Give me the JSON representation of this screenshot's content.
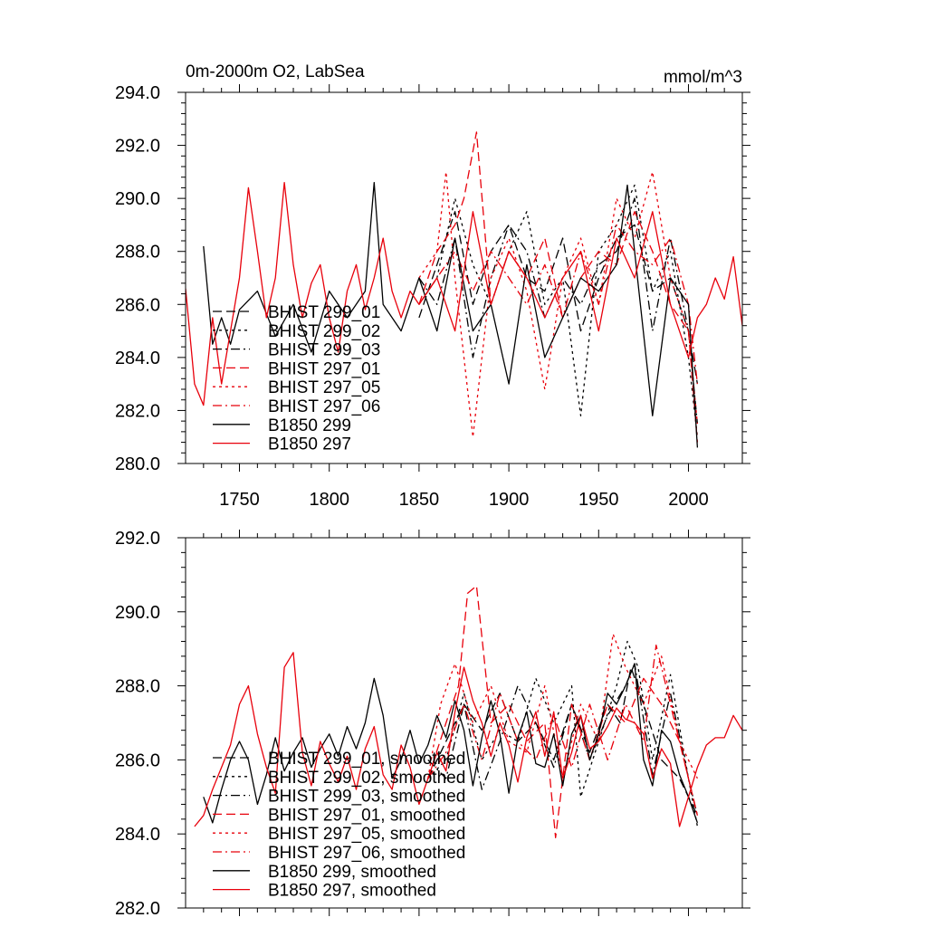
{
  "chart_data": [
    {
      "type": "line",
      "title_left": "0m-2000m O2, LabSea",
      "title_right": "mmol/m^3",
      "xlim": [
        1720,
        2030
      ],
      "ylim": [
        280,
        294
      ],
      "xticks": [
        1750,
        1800,
        1850,
        1900,
        1950,
        2000
      ],
      "xtick_labels": [
        "1750",
        "1800",
        "1850",
        "1900",
        "1950",
        "2000"
      ],
      "yticks": [
        280,
        282,
        284,
        286,
        288,
        290,
        292,
        294
      ],
      "ytick_labels": [
        "280.0",
        "282.0",
        "284.0",
        "286.0",
        "288.0",
        "290.0",
        "292.0",
        "294.0"
      ],
      "legend": [
        "BHIST 299_01",
        "BHIST 299_02",
        "BHIST 299_03",
        "BHIST 297_01",
        "BHIST 297_05",
        "BHIST 297_06",
        "B1850 299",
        "B1850 297"
      ],
      "series": [
        {
          "name": "BHIST 299_01",
          "color": "#000000",
          "dash": "long",
          "x": [
            1850,
            1860,
            1870,
            1880,
            1890,
            1900,
            1910,
            1920,
            1930,
            1940,
            1950,
            1960,
            1970,
            1980,
            1990,
            2000,
            2005
          ],
          "values": [
            285.5,
            287.5,
            289.5,
            286,
            288,
            289,
            287,
            286.5,
            288.5,
            285,
            287,
            288.5,
            289,
            286.5,
            287,
            285,
            283
          ]
        },
        {
          "name": "BHIST 299_02",
          "color": "#000000",
          "dash": "dot",
          "x": [
            1850,
            1860,
            1870,
            1880,
            1890,
            1900,
            1910,
            1920,
            1930,
            1940,
            1950,
            1960,
            1970,
            1980,
            1990,
            2000,
            2005
          ],
          "values": [
            286,
            287,
            290,
            287.5,
            286,
            288,
            289.5,
            286,
            287,
            281.8,
            288,
            289,
            290.5,
            286.5,
            288,
            284,
            281
          ]
        },
        {
          "name": "BHIST 299_03",
          "color": "#000000",
          "dash": "dashdot",
          "x": [
            1850,
            1860,
            1870,
            1880,
            1890,
            1900,
            1910,
            1920,
            1930,
            1940,
            1950,
            1960,
            1970,
            1980,
            1990,
            2000,
            2005
          ],
          "values": [
            287,
            286,
            288.5,
            284,
            287,
            289,
            288,
            285.5,
            287,
            286,
            287.5,
            288,
            290,
            285,
            288.5,
            285,
            281.5
          ]
        },
        {
          "name": "BHIST 297_01",
          "color": "#e8000b",
          "dash": "long",
          "x": [
            1850,
            1860,
            1870,
            1875,
            1882,
            1890,
            1900,
            1910,
            1920,
            1930,
            1940,
            1950,
            1960,
            1970,
            1980,
            1990,
            2000,
            2005
          ],
          "values": [
            286,
            288,
            289,
            290,
            292.5,
            286,
            288,
            287,
            288.5,
            285.5,
            287,
            288,
            287.5,
            289.5,
            288,
            286,
            285,
            280.8
          ]
        },
        {
          "name": "BHIST 297_05",
          "color": "#e8000b",
          "dash": "dot",
          "x": [
            1850,
            1860,
            1865,
            1870,
            1880,
            1890,
            1900,
            1910,
            1920,
            1930,
            1940,
            1950,
            1960,
            1970,
            1980,
            1990,
            2000,
            2005
          ],
          "values": [
            287,
            288,
            291,
            287,
            281,
            287,
            288.5,
            286.5,
            282.8,
            287,
            288.5,
            286,
            290,
            288.5,
            291,
            287,
            285,
            281.5
          ]
        },
        {
          "name": "BHIST 297_06",
          "color": "#e8000b",
          "dash": "dashdot",
          "x": [
            1850,
            1860,
            1870,
            1880,
            1890,
            1900,
            1910,
            1920,
            1930,
            1940,
            1950,
            1960,
            1970,
            1980,
            1990,
            2000,
            2005
          ],
          "values": [
            286,
            287,
            288,
            286.5,
            288,
            287,
            286,
            287.5,
            285.5,
            288,
            286,
            289,
            288,
            287.5,
            288.5,
            286,
            283
          ]
        },
        {
          "name": "B1850 299",
          "color": "#000000",
          "dash": "solid",
          "x": [
            1730,
            1735,
            1740,
            1745,
            1750,
            1760,
            1770,
            1780,
            1790,
            1800,
            1810,
            1820,
            1825,
            1830,
            1840,
            1850,
            1860,
            1870,
            1880,
            1890,
            1900,
            1910,
            1920,
            1930,
            1940,
            1950,
            1960,
            1966,
            1970,
            1980,
            1990,
            2000,
            2005
          ],
          "values": [
            288.2,
            284.5,
            285.5,
            284.5,
            285.8,
            286.5,
            284.8,
            286,
            284.2,
            286.5,
            285.5,
            286.5,
            290.6,
            286,
            285,
            287,
            285,
            288.5,
            285,
            286,
            283,
            287.5,
            284,
            285.5,
            287,
            286.5,
            287.5,
            290.5,
            288,
            281.8,
            287,
            286,
            280.6
          ]
        },
        {
          "name": "B1850 297",
          "color": "#e8000b",
          "dash": "solid",
          "x": [
            1720,
            1725,
            1730,
            1735,
            1740,
            1745,
            1750,
            1755,
            1760,
            1765,
            1770,
            1775,
            1780,
            1785,
            1790,
            1795,
            1800,
            1805,
            1810,
            1815,
            1820,
            1825,
            1830,
            1835,
            1840,
            1845,
            1850,
            1860,
            1870,
            1880,
            1890,
            1900,
            1910,
            1920,
            1930,
            1940,
            1950,
            1960,
            1970,
            1980,
            1990,
            2000,
            2005,
            2010,
            2015,
            2020,
            2025,
            2030
          ],
          "values": [
            286.6,
            283,
            282.2,
            285.5,
            283,
            285,
            287,
            290.4,
            288,
            285.5,
            287,
            290.6,
            287.5,
            285.5,
            286.8,
            287.5,
            285.5,
            284.2,
            286.5,
            287.5,
            285.8,
            287,
            288.5,
            286.5,
            285.5,
            286.5,
            286,
            287,
            285,
            289.5,
            286,
            288,
            287,
            285.5,
            287,
            288,
            285,
            288.5,
            287,
            289.5,
            286,
            284,
            285.5,
            286,
            287,
            286.2,
            287.8,
            285.2
          ]
        }
      ]
    },
    {
      "type": "line",
      "xlim": [
        1720,
        2030
      ],
      "ylim": [
        282,
        292
      ],
      "yticks": [
        282,
        284,
        286,
        288,
        290,
        292
      ],
      "ytick_labels": [
        "282.0",
        "284.0",
        "286.0",
        "288.0",
        "290.0",
        "292.0"
      ],
      "legend": [
        "BHIST 299_01, smoothed",
        "BHIST 299_02, smoothed",
        "BHIST 299_03, smoothed",
        "BHIST 297_01, smoothed",
        "BHIST 297_05, smoothed",
        "BHIST 297_06, smoothed",
        "B1850 299, smoothed",
        "B1850 297, smoothed"
      ],
      "series": [
        {
          "name": "BHIST 299_01, smoothed",
          "color": "#000000",
          "dash": "long",
          "x": [
            1855,
            1865,
            1875,
            1885,
            1895,
            1905,
            1915,
            1925,
            1935,
            1945,
            1955,
            1962,
            1968,
            1975,
            1985,
            1995,
            2005
          ],
          "values": [
            285.5,
            286.5,
            287.5,
            286.8,
            287.8,
            286.5,
            287,
            286,
            287.5,
            286.2,
            287.5,
            287,
            288.5,
            287.5,
            286,
            285.5,
            284.5
          ]
        },
        {
          "name": "BHIST 299_02, smoothed",
          "color": "#000000",
          "dash": "dot",
          "x": [
            1855,
            1865,
            1875,
            1885,
            1895,
            1905,
            1915,
            1925,
            1935,
            1940,
            1950,
            1960,
            1966,
            1972,
            1980,
            1990,
            2000,
            2005
          ],
          "values": [
            285.5,
            286,
            287.8,
            286,
            286.8,
            286.5,
            288.2,
            287,
            288,
            285,
            286.5,
            288,
            289.2,
            288.5,
            286,
            288.3,
            285.5,
            284.2
          ]
        },
        {
          "name": "BHIST 299_03, smoothed",
          "color": "#000000",
          "dash": "dashdot",
          "x": [
            1855,
            1865,
            1875,
            1885,
            1895,
            1905,
            1915,
            1925,
            1935,
            1945,
            1955,
            1965,
            1970,
            1980,
            1990,
            2000,
            2005
          ],
          "values": [
            286,
            285.5,
            287.5,
            285.2,
            286.5,
            288,
            287,
            285.8,
            287.5,
            286,
            287.2,
            288,
            288.6,
            285.6,
            287.8,
            285.5,
            284.5
          ]
        },
        {
          "name": "BHIST 297_01, smoothed",
          "color": "#e8000b",
          "dash": "long",
          "x": [
            1855,
            1865,
            1872,
            1877,
            1882,
            1890,
            1900,
            1910,
            1920,
            1926,
            1935,
            1945,
            1955,
            1965,
            1975,
            1985,
            1995,
            2005
          ],
          "values": [
            285.5,
            287,
            288,
            290.5,
            290.7,
            287,
            287.5,
            286.5,
            287,
            283.9,
            287.5,
            286,
            287.5,
            287,
            288.2,
            287.5,
            286.5,
            284.5
          ]
        },
        {
          "name": "BHIST 297_05, smoothed",
          "color": "#e8000b",
          "dash": "dot",
          "x": [
            1855,
            1862,
            1870,
            1880,
            1890,
            1900,
            1910,
            1920,
            1930,
            1940,
            1950,
            1958,
            1965,
            1975,
            1985,
            1995,
            2005
          ],
          "values": [
            285.5,
            287.5,
            288.6,
            287,
            288,
            286.5,
            286.2,
            288,
            285.5,
            287.5,
            286.5,
            289.4,
            288.5,
            287.5,
            288.8,
            286.5,
            285.5
          ]
        },
        {
          "name": "BHIST 297_06, smoothed",
          "color": "#e8000b",
          "dash": "dashdot",
          "x": [
            1855,
            1865,
            1875,
            1885,
            1895,
            1905,
            1915,
            1925,
            1935,
            1945,
            1955,
            1965,
            1975,
            1982,
            1990,
            2000,
            2005
          ],
          "values": [
            285.5,
            286.2,
            287.5,
            286,
            287.8,
            286.5,
            286,
            287.2,
            285.8,
            287.5,
            286,
            287.5,
            286.5,
            289.1,
            287.5,
            285.5,
            284.5
          ]
        },
        {
          "name": "B1850 299, smoothed",
          "color": "#000000",
          "dash": "solid",
          "x": [
            1730,
            1735,
            1740,
            1745,
            1750,
            1755,
            1760,
            1765,
            1770,
            1775,
            1780,
            1785,
            1790,
            1795,
            1800,
            1805,
            1810,
            1815,
            1820,
            1825,
            1830,
            1835,
            1840,
            1845,
            1850,
            1855,
            1860,
            1865,
            1870,
            1875,
            1880,
            1885,
            1890,
            1895,
            1900,
            1905,
            1910,
            1915,
            1920,
            1925,
            1930,
            1935,
            1940,
            1945,
            1950,
            1955,
            1960,
            1965,
            1970,
            1975,
            1980,
            1985,
            1990,
            1995,
            2000,
            2005
          ],
          "values": [
            285,
            284.3,
            285.2,
            286,
            286.5,
            286,
            284.8,
            285.6,
            286.6,
            285.7,
            286.2,
            286.6,
            285.8,
            286.3,
            286.7,
            286.1,
            286.9,
            286.3,
            287,
            288.2,
            287.2,
            285.5,
            286,
            286.8,
            285.9,
            286.4,
            287.2,
            286.6,
            287.6,
            286.8,
            285.3,
            286.6,
            287.6,
            286.7,
            285.1,
            286.6,
            287.3,
            285.9,
            285.8,
            286.7,
            285.3,
            286.7,
            287.2,
            286,
            286.7,
            287.8,
            287.5,
            288,
            288.6,
            286,
            285.3,
            286.8,
            286.5,
            285.6,
            285,
            284.3
          ]
        },
        {
          "name": "B1850 297, smoothed",
          "color": "#e8000b",
          "dash": "solid",
          "x": [
            1725,
            1730,
            1735,
            1740,
            1745,
            1750,
            1755,
            1760,
            1765,
            1770,
            1775,
            1780,
            1785,
            1790,
            1795,
            1800,
            1805,
            1810,
            1815,
            1820,
            1825,
            1830,
            1835,
            1840,
            1845,
            1850,
            1855,
            1860,
            1865,
            1870,
            1875,
            1880,
            1885,
            1890,
            1895,
            1900,
            1905,
            1910,
            1915,
            1920,
            1925,
            1930,
            1935,
            1940,
            1945,
            1950,
            1955,
            1960,
            1965,
            1970,
            1975,
            1980,
            1985,
            1990,
            1995,
            2000,
            2005,
            2010,
            2015,
            2020,
            2025,
            2030
          ],
          "values": [
            284.2,
            284.5,
            285.2,
            285.8,
            286.4,
            287.5,
            288,
            286.7,
            285.8,
            285.1,
            288.5,
            288.9,
            286.2,
            285.3,
            286.5,
            285.9,
            285.4,
            286.1,
            285.2,
            286.3,
            286.9,
            285.6,
            285.2,
            286.4,
            285.8,
            284.8,
            285.5,
            286.2,
            285.7,
            287.3,
            288.5,
            287.6,
            287,
            286.1,
            287,
            286.4,
            285.4,
            286.6,
            287.3,
            286.1,
            287.3,
            285.5,
            286.2,
            287.2,
            286.3,
            286.5,
            286.9,
            287.4,
            287.1,
            287,
            286.7,
            285.5,
            286.3,
            285.9,
            284.2,
            285,
            285.8,
            286.4,
            286.6,
            286.6,
            287.2,
            286.8
          ]
        }
      ]
    }
  ]
}
